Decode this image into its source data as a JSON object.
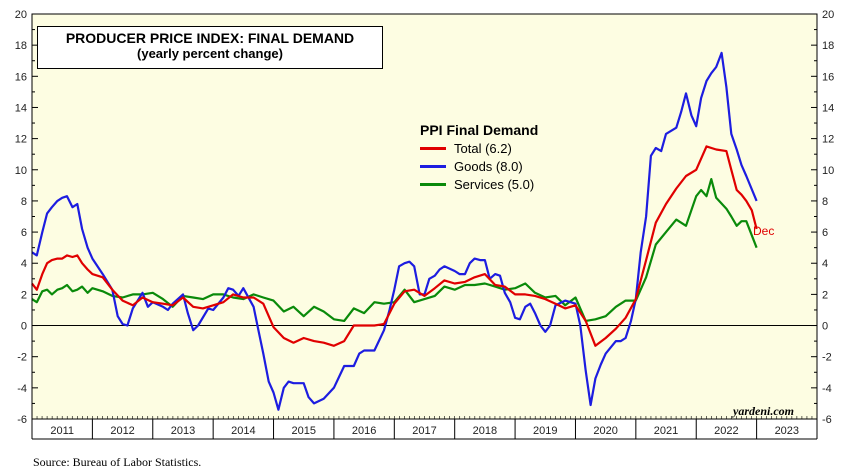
{
  "title": "PRODUCER PRICE INDEX: FINAL DEMAND",
  "subtitle": "(yearly percent change)",
  "legend": {
    "title": "PPI Final Demand",
    "items": [
      {
        "label": "Total (6.2)",
        "color": "#e00000"
      },
      {
        "label": "Goods (8.0)",
        "color": "#1d1de0"
      },
      {
        "label": "Services (5.0)",
        "color": "#0a8a0a"
      }
    ]
  },
  "end_label": "Dec",
  "watermark": "yardeni.com",
  "source": "Source: Bureau of Labor Statistics.",
  "colors": {
    "background": "#fdfde2",
    "total": "#e00000",
    "goods": "#1d1de0",
    "services": "#0a8a0a"
  },
  "chart_data": {
    "type": "line",
    "title": "PRODUCER PRICE INDEX: FINAL DEMAND",
    "subtitle": "(yearly percent change)",
    "xlabel": "",
    "ylabel": "",
    "ylim": [
      -6,
      20
    ],
    "yticks": [
      -6,
      -4,
      -2,
      0,
      2,
      4,
      6,
      8,
      10,
      12,
      14,
      16,
      18,
      20
    ],
    "xlim": [
      2011.0,
      2024.0
    ],
    "xticks": [
      "2011",
      "2012",
      "2013",
      "2014",
      "2015",
      "2016",
      "2017",
      "2018",
      "2019",
      "2020",
      "2021",
      "2022",
      "2023"
    ],
    "zero_line": true,
    "series": [
      {
        "name": "Total (6.2)",
        "color": "#e00000",
        "points": [
          [
            2011.0,
            2.7
          ],
          [
            2011.08,
            2.3
          ],
          [
            2011.17,
            3.3
          ],
          [
            2011.25,
            4.0
          ],
          [
            2011.33,
            4.2
          ],
          [
            2011.42,
            4.3
          ],
          [
            2011.5,
            4.3
          ],
          [
            2011.58,
            4.5
          ],
          [
            2011.67,
            4.4
          ],
          [
            2011.75,
            4.5
          ],
          [
            2011.83,
            4.0
          ],
          [
            2011.92,
            3.6
          ],
          [
            2012.0,
            3.3
          ],
          [
            2012.17,
            3.1
          ],
          [
            2012.33,
            2.3
          ],
          [
            2012.5,
            1.6
          ],
          [
            2012.67,
            1.3
          ],
          [
            2012.83,
            1.8
          ],
          [
            2013.0,
            1.5
          ],
          [
            2013.17,
            1.4
          ],
          [
            2013.33,
            1.3
          ],
          [
            2013.5,
            1.8
          ],
          [
            2013.67,
            1.2
          ],
          [
            2013.83,
            1.1
          ],
          [
            2014.0,
            1.3
          ],
          [
            2014.17,
            1.5
          ],
          [
            2014.33,
            2.0
          ],
          [
            2014.5,
            1.8
          ],
          [
            2014.67,
            1.8
          ],
          [
            2014.83,
            1.4
          ],
          [
            2015.0,
            -0.1
          ],
          [
            2015.17,
            -0.8
          ],
          [
            2015.33,
            -1.1
          ],
          [
            2015.5,
            -0.8
          ],
          [
            2015.67,
            -1.0
          ],
          [
            2015.83,
            -1.1
          ],
          [
            2016.0,
            -1.3
          ],
          [
            2016.17,
            -1.0
          ],
          [
            2016.33,
            0.0
          ],
          [
            2016.5,
            0.0
          ],
          [
            2016.67,
            0.0
          ],
          [
            2016.83,
            0.1
          ],
          [
            2017.0,
            1.4
          ],
          [
            2017.17,
            2.2
          ],
          [
            2017.33,
            2.3
          ],
          [
            2017.5,
            1.9
          ],
          [
            2017.67,
            2.4
          ],
          [
            2017.83,
            2.9
          ],
          [
            2018.0,
            2.7
          ],
          [
            2018.17,
            2.8
          ],
          [
            2018.33,
            3.1
          ],
          [
            2018.5,
            3.3
          ],
          [
            2018.67,
            2.6
          ],
          [
            2018.83,
            2.5
          ],
          [
            2019.0,
            2.0
          ],
          [
            2019.17,
            2.0
          ],
          [
            2019.33,
            1.9
          ],
          [
            2019.5,
            1.7
          ],
          [
            2019.67,
            1.4
          ],
          [
            2019.83,
            1.1
          ],
          [
            2020.0,
            1.3
          ],
          [
            2020.17,
            0.3
          ],
          [
            2020.33,
            -1.3
          ],
          [
            2020.5,
            -0.8
          ],
          [
            2020.67,
            -0.2
          ],
          [
            2020.83,
            0.5
          ],
          [
            2021.0,
            1.7
          ],
          [
            2021.17,
            4.2
          ],
          [
            2021.33,
            6.6
          ],
          [
            2021.5,
            7.8
          ],
          [
            2021.67,
            8.8
          ],
          [
            2021.83,
            9.6
          ],
          [
            2022.0,
            10.0
          ],
          [
            2022.17,
            11.5
          ],
          [
            2022.33,
            11.3
          ],
          [
            2022.5,
            11.2
          ],
          [
            2022.58,
            10.0
          ],
          [
            2022.67,
            8.7
          ],
          [
            2022.75,
            8.4
          ],
          [
            2022.83,
            8.0
          ],
          [
            2022.92,
            7.4
          ],
          [
            2023.0,
            6.2
          ]
        ]
      },
      {
        "name": "Goods (8.0)",
        "color": "#1d1de0",
        "points": [
          [
            2011.0,
            4.7
          ],
          [
            2011.08,
            4.5
          ],
          [
            2011.17,
            6.0
          ],
          [
            2011.25,
            7.2
          ],
          [
            2011.33,
            7.6
          ],
          [
            2011.42,
            8.0
          ],
          [
            2011.5,
            8.2
          ],
          [
            2011.58,
            8.3
          ],
          [
            2011.67,
            7.6
          ],
          [
            2011.75,
            7.8
          ],
          [
            2011.83,
            6.2
          ],
          [
            2011.92,
            5.0
          ],
          [
            2012.0,
            4.3
          ],
          [
            2012.17,
            3.3
          ],
          [
            2012.33,
            2.3
          ],
          [
            2012.42,
            0.6
          ],
          [
            2012.5,
            0.1
          ],
          [
            2012.58,
            0.0
          ],
          [
            2012.67,
            1.1
          ],
          [
            2012.83,
            2.1
          ],
          [
            2012.92,
            1.2
          ],
          [
            2013.0,
            1.5
          ],
          [
            2013.17,
            1.2
          ],
          [
            2013.25,
            1.0
          ],
          [
            2013.33,
            1.4
          ],
          [
            2013.5,
            2.0
          ],
          [
            2013.58,
            0.8
          ],
          [
            2013.67,
            -0.3
          ],
          [
            2013.75,
            0.0
          ],
          [
            2013.92,
            1.1
          ],
          [
            2014.0,
            1.0
          ],
          [
            2014.17,
            1.8
          ],
          [
            2014.25,
            2.4
          ],
          [
            2014.33,
            2.3
          ],
          [
            2014.42,
            1.9
          ],
          [
            2014.5,
            2.4
          ],
          [
            2014.67,
            1.2
          ],
          [
            2014.75,
            -0.3
          ],
          [
            2014.83,
            -1.8
          ],
          [
            2014.92,
            -3.6
          ],
          [
            2015.0,
            -4.3
          ],
          [
            2015.08,
            -5.4
          ],
          [
            2015.17,
            -4.0
          ],
          [
            2015.25,
            -3.6
          ],
          [
            2015.33,
            -3.7
          ],
          [
            2015.5,
            -3.7
          ],
          [
            2015.58,
            -4.6
          ],
          [
            2015.67,
            -5.0
          ],
          [
            2015.83,
            -4.7
          ],
          [
            2016.0,
            -4.0
          ],
          [
            2016.17,
            -2.6
          ],
          [
            2016.33,
            -2.6
          ],
          [
            2016.42,
            -1.8
          ],
          [
            2016.5,
            -1.6
          ],
          [
            2016.67,
            -1.6
          ],
          [
            2016.83,
            -0.3
          ],
          [
            2016.92,
            1.0
          ],
          [
            2017.0,
            2.3
          ],
          [
            2017.08,
            3.8
          ],
          [
            2017.17,
            4.0
          ],
          [
            2017.25,
            4.1
          ],
          [
            2017.33,
            3.8
          ],
          [
            2017.42,
            2.0
          ],
          [
            2017.5,
            2.0
          ],
          [
            2017.58,
            3.0
          ],
          [
            2017.67,
            3.2
          ],
          [
            2017.75,
            3.6
          ],
          [
            2017.83,
            3.8
          ],
          [
            2018.0,
            3.5
          ],
          [
            2018.08,
            3.3
          ],
          [
            2018.17,
            3.3
          ],
          [
            2018.25,
            4.0
          ],
          [
            2018.33,
            4.3
          ],
          [
            2018.42,
            4.2
          ],
          [
            2018.5,
            4.2
          ],
          [
            2018.58,
            3.0
          ],
          [
            2018.67,
            3.3
          ],
          [
            2018.75,
            3.2
          ],
          [
            2018.83,
            2.1
          ],
          [
            2018.92,
            1.5
          ],
          [
            2019.0,
            0.5
          ],
          [
            2019.08,
            0.4
          ],
          [
            2019.17,
            1.2
          ],
          [
            2019.25,
            1.4
          ],
          [
            2019.33,
            0.8
          ],
          [
            2019.42,
            0.0
          ],
          [
            2019.5,
            -0.4
          ],
          [
            2019.58,
            0.0
          ],
          [
            2019.67,
            1.3
          ],
          [
            2019.83,
            1.6
          ],
          [
            2020.0,
            1.4
          ],
          [
            2020.08,
            0.0
          ],
          [
            2020.17,
            -2.9
          ],
          [
            2020.25,
            -5.1
          ],
          [
            2020.33,
            -3.4
          ],
          [
            2020.42,
            -2.5
          ],
          [
            2020.5,
            -1.8
          ],
          [
            2020.67,
            -1.0
          ],
          [
            2020.75,
            -1.0
          ],
          [
            2020.83,
            -0.8
          ],
          [
            2020.92,
            0.3
          ],
          [
            2021.0,
            1.7
          ],
          [
            2021.08,
            4.7
          ],
          [
            2021.17,
            7.0
          ],
          [
            2021.25,
            10.9
          ],
          [
            2021.33,
            11.4
          ],
          [
            2021.42,
            11.2
          ],
          [
            2021.5,
            12.3
          ],
          [
            2021.67,
            12.7
          ],
          [
            2021.75,
            13.7
          ],
          [
            2021.83,
            14.9
          ],
          [
            2021.92,
            13.5
          ],
          [
            2022.0,
            12.8
          ],
          [
            2022.08,
            14.6
          ],
          [
            2022.17,
            15.7
          ],
          [
            2022.25,
            16.2
          ],
          [
            2022.33,
            16.6
          ],
          [
            2022.42,
            17.5
          ],
          [
            2022.5,
            15.3
          ],
          [
            2022.58,
            12.3
          ],
          [
            2022.67,
            11.3
          ],
          [
            2022.75,
            10.3
          ],
          [
            2022.83,
            9.6
          ],
          [
            2023.0,
            8.0
          ]
        ]
      },
      {
        "name": "Services (5.0)",
        "color": "#0a8a0a",
        "points": [
          [
            2011.0,
            1.7
          ],
          [
            2011.08,
            1.5
          ],
          [
            2011.17,
            2.2
          ],
          [
            2011.25,
            2.3
          ],
          [
            2011.33,
            2.0
          ],
          [
            2011.42,
            2.3
          ],
          [
            2011.5,
            2.4
          ],
          [
            2011.58,
            2.6
          ],
          [
            2011.67,
            2.2
          ],
          [
            2011.75,
            2.3
          ],
          [
            2011.83,
            2.5
          ],
          [
            2011.92,
            2.1
          ],
          [
            2012.0,
            2.4
          ],
          [
            2012.17,
            2.2
          ],
          [
            2012.33,
            1.9
          ],
          [
            2012.5,
            1.8
          ],
          [
            2012.67,
            2.0
          ],
          [
            2012.83,
            2.0
          ],
          [
            2013.0,
            2.1
          ],
          [
            2013.17,
            1.7
          ],
          [
            2013.33,
            1.2
          ],
          [
            2013.5,
            1.9
          ],
          [
            2013.67,
            1.8
          ],
          [
            2013.83,
            1.7
          ],
          [
            2014.0,
            2.0
          ],
          [
            2014.17,
            2.0
          ],
          [
            2014.33,
            1.8
          ],
          [
            2014.5,
            1.7
          ],
          [
            2014.67,
            2.0
          ],
          [
            2014.83,
            1.8
          ],
          [
            2015.0,
            1.6
          ],
          [
            2015.17,
            0.9
          ],
          [
            2015.33,
            1.2
          ],
          [
            2015.5,
            0.6
          ],
          [
            2015.67,
            1.2
          ],
          [
            2015.83,
            0.9
          ],
          [
            2016.0,
            0.4
          ],
          [
            2016.17,
            0.3
          ],
          [
            2016.33,
            1.1
          ],
          [
            2016.5,
            0.8
          ],
          [
            2016.67,
            1.5
          ],
          [
            2016.83,
            1.4
          ],
          [
            2017.0,
            1.5
          ],
          [
            2017.17,
            2.3
          ],
          [
            2017.33,
            1.5
          ],
          [
            2017.5,
            1.7
          ],
          [
            2017.67,
            1.9
          ],
          [
            2017.83,
            2.5
          ],
          [
            2018.0,
            2.3
          ],
          [
            2018.17,
            2.6
          ],
          [
            2018.33,
            2.6
          ],
          [
            2018.5,
            2.7
          ],
          [
            2018.67,
            2.5
          ],
          [
            2018.83,
            2.3
          ],
          [
            2019.0,
            2.4
          ],
          [
            2019.17,
            2.7
          ],
          [
            2019.33,
            2.1
          ],
          [
            2019.5,
            1.8
          ],
          [
            2019.67,
            1.9
          ],
          [
            2019.83,
            1.3
          ],
          [
            2020.0,
            1.8
          ],
          [
            2020.17,
            0.3
          ],
          [
            2020.33,
            0.4
          ],
          [
            2020.5,
            0.6
          ],
          [
            2020.67,
            1.2
          ],
          [
            2020.83,
            1.6
          ],
          [
            2021.0,
            1.6
          ],
          [
            2021.17,
            3.1
          ],
          [
            2021.33,
            5.2
          ],
          [
            2021.5,
            6.0
          ],
          [
            2021.67,
            6.8
          ],
          [
            2021.83,
            6.4
          ],
          [
            2022.0,
            8.3
          ],
          [
            2022.08,
            8.7
          ],
          [
            2022.17,
            8.3
          ],
          [
            2022.25,
            9.4
          ],
          [
            2022.33,
            8.2
          ],
          [
            2022.5,
            7.5
          ],
          [
            2022.58,
            7.0
          ],
          [
            2022.67,
            6.4
          ],
          [
            2022.75,
            6.7
          ],
          [
            2022.83,
            6.7
          ],
          [
            2023.0,
            5.0
          ]
        ]
      }
    ]
  }
}
